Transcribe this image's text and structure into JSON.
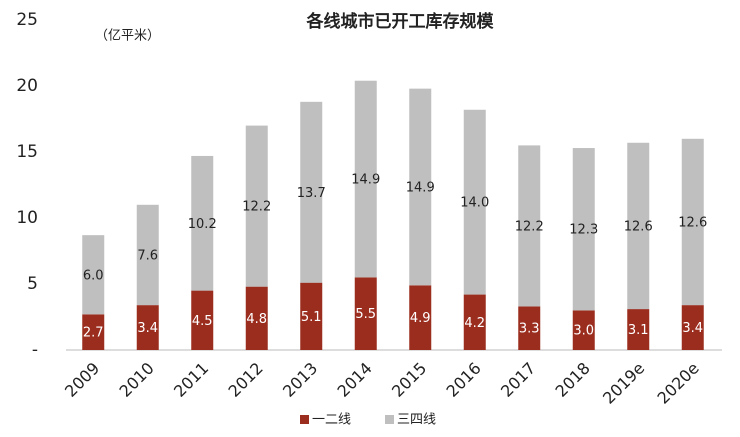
{
  "chart_data": {
    "type": "stacked-bar",
    "title": "各线城市已开工库存规模",
    "subtitle": "（亿平米）",
    "categories": [
      "2009",
      "2010",
      "2011",
      "2012",
      "2013",
      "2014",
      "2015",
      "2016",
      "2017",
      "2018",
      "2019e",
      "2020e"
    ],
    "series": [
      {
        "name": "一二线",
        "color": "#9b2d1f",
        "values": [
          2.7,
          3.4,
          4.5,
          4.8,
          5.1,
          5.5,
          4.9,
          4.2,
          3.3,
          3.0,
          3.1,
          3.4
        ],
        "value_labels": [
          "2.7",
          "3.4",
          "4.5",
          "4.8",
          "5.1",
          "5.5",
          "4.9",
          "4.2",
          "3.3",
          "3.0",
          "3.1",
          "3.4"
        ]
      },
      {
        "name": "三四线",
        "color": "#bfbfbf",
        "values": [
          6.0,
          7.6,
          10.2,
          12.2,
          13.7,
          14.9,
          14.9,
          14.0,
          12.2,
          12.3,
          12.6,
          12.6
        ],
        "value_labels": [
          "6.0",
          "7.6",
          "10.2",
          "12.2",
          "13.7",
          "14.9",
          "14.9",
          "14.0",
          "12.2",
          "12.3",
          "12.6",
          "12.6"
        ]
      }
    ],
    "ylim": [
      0,
      25
    ],
    "yticks": [
      {
        "value": 0,
        "label": "-"
      },
      5,
      10,
      15,
      20,
      25
    ],
    "grid": false,
    "legend": "bottom"
  }
}
